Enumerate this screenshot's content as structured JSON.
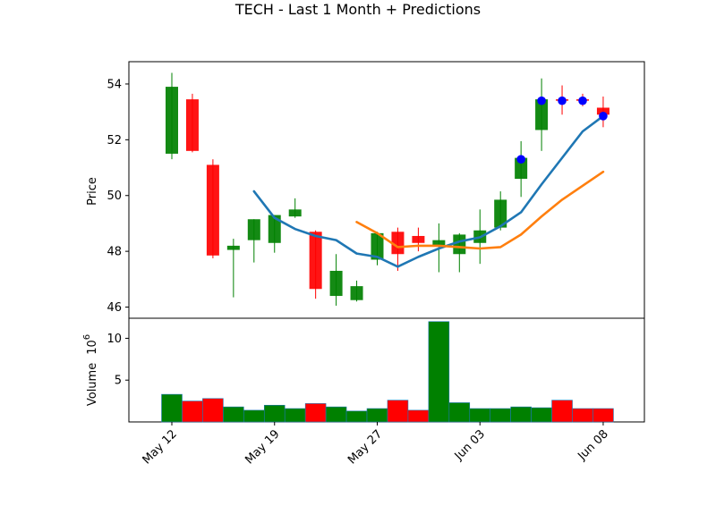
{
  "chart_data": {
    "type": "candlestick",
    "title": "TECH - Last 1 Month + Predictions",
    "colors": {
      "up": "#008000",
      "down": "#ff0000",
      "ma_fast": "#1f77b4",
      "ma_slow": "#ff7f0e",
      "prediction_marker": "#0000ff"
    },
    "price_panel": {
      "ylabel": "Price",
      "ylim": [
        45.6,
        54.8
      ],
      "yticks": [
        46,
        48,
        50,
        52,
        54
      ],
      "ytick_labels": [
        "46",
        "48",
        "50",
        "52",
        "54"
      ]
    },
    "volume_panel": {
      "ylabel": "Volume",
      "ylabel_exponent_base": "10",
      "ylabel_exponent": "6",
      "ylim": [
        0,
        12.4
      ],
      "yticks": [
        5,
        10
      ],
      "ytick_labels": [
        "5",
        "10"
      ]
    },
    "x_ticks": [
      {
        "label": "May 12",
        "index": 0
      },
      {
        "label": "May 19",
        "index": 5
      },
      {
        "label": "May 27",
        "index": 10
      },
      {
        "label": "Jun 03",
        "index": 15
      },
      {
        "label": "Jun 08",
        "index": 21
      }
    ],
    "candles": [
      {
        "open": 51.5,
        "high": 54.4,
        "low": 51.3,
        "close": 53.9,
        "volume": 3.3
      },
      {
        "open": 53.45,
        "high": 53.65,
        "low": 51.55,
        "close": 51.6,
        "volume": 2.5
      },
      {
        "open": 51.1,
        "high": 51.3,
        "low": 47.75,
        "close": 47.85,
        "volume": 2.8
      },
      {
        "open": 48.05,
        "high": 48.45,
        "low": 46.35,
        "close": 48.2,
        "volume": 1.8
      },
      {
        "open": 48.4,
        "high": 49.15,
        "low": 47.6,
        "close": 49.15,
        "volume": 1.4
      },
      {
        "open": 48.3,
        "high": 49.3,
        "low": 47.95,
        "close": 49.3,
        "volume": 2.0
      },
      {
        "open": 49.25,
        "high": 49.9,
        "low": 49.2,
        "close": 49.5,
        "volume": 1.6
      },
      {
        "open": 48.7,
        "high": 48.75,
        "low": 46.3,
        "close": 46.65,
        "volume": 2.2
      },
      {
        "open": 46.4,
        "high": 47.9,
        "low": 46.05,
        "close": 47.3,
        "volume": 1.8
      },
      {
        "open": 46.25,
        "high": 46.95,
        "low": 46.2,
        "close": 46.75,
        "volume": 1.3
      },
      {
        "open": 47.7,
        "high": 48.7,
        "low": 47.5,
        "close": 48.65,
        "volume": 1.6
      },
      {
        "open": 48.7,
        "high": 48.85,
        "low": 47.3,
        "close": 47.9,
        "volume": 2.6
      },
      {
        "open": 48.55,
        "high": 48.85,
        "low": 48.0,
        "close": 48.3,
        "volume": 1.4
      },
      {
        "open": 48.2,
        "high": 49.0,
        "low": 47.25,
        "close": 48.4,
        "volume": 12.0
      },
      {
        "open": 47.9,
        "high": 48.65,
        "low": 47.25,
        "close": 48.6,
        "volume": 2.3
      },
      {
        "open": 48.3,
        "high": 49.5,
        "low": 47.55,
        "close": 48.75,
        "volume": 1.6
      },
      {
        "open": 48.85,
        "high": 50.15,
        "low": 48.75,
        "close": 49.85,
        "volume": 1.6
      },
      {
        "open": 50.6,
        "high": 51.95,
        "low": 49.95,
        "close": 51.35,
        "volume": 1.8
      },
      {
        "open": 52.35,
        "high": 54.2,
        "low": 51.6,
        "close": 53.45,
        "volume": 1.7
      },
      {
        "open": 53.45,
        "high": 53.95,
        "low": 52.9,
        "close": 53.4,
        "volume": 2.6
      },
      {
        "open": 53.45,
        "high": 53.65,
        "low": 53.2,
        "close": 53.4,
        "volume": 1.6
      },
      {
        "open": 53.15,
        "high": 53.55,
        "low": 52.45,
        "close": 52.9,
        "volume": 1.6
      }
    ],
    "ma_fast": [
      {
        "index": 4,
        "value": 50.15
      },
      {
        "index": 5,
        "value": 49.2
      },
      {
        "index": 6,
        "value": 48.8
      },
      {
        "index": 7,
        "value": 48.55
      },
      {
        "index": 8,
        "value": 48.4
      },
      {
        "index": 9,
        "value": 47.92
      },
      {
        "index": 10,
        "value": 47.8
      },
      {
        "index": 11,
        "value": 47.45
      },
      {
        "index": 12,
        "value": 47.8
      },
      {
        "index": 13,
        "value": 48.1
      },
      {
        "index": 14,
        "value": 48.35
      },
      {
        "index": 15,
        "value": 48.5
      },
      {
        "index": 16,
        "value": 48.9
      },
      {
        "index": 17,
        "value": 49.4
      },
      {
        "index": 18,
        "value": 50.4
      },
      {
        "index": 19,
        "value": 51.35
      },
      {
        "index": 20,
        "value": 52.3
      },
      {
        "index": 21,
        "value": 52.85
      }
    ],
    "ma_slow": [
      {
        "index": 9,
        "value": 49.05
      },
      {
        "index": 10,
        "value": 48.65
      },
      {
        "index": 11,
        "value": 48.15
      },
      {
        "index": 12,
        "value": 48.2
      },
      {
        "index": 13,
        "value": 48.2
      },
      {
        "index": 14,
        "value": 48.15
      },
      {
        "index": 15,
        "value": 48.1
      },
      {
        "index": 16,
        "value": 48.15
      },
      {
        "index": 17,
        "value": 48.6
      },
      {
        "index": 18,
        "value": 49.25
      },
      {
        "index": 19,
        "value": 49.85
      },
      {
        "index": 20,
        "value": 50.35
      },
      {
        "index": 21,
        "value": 50.85
      }
    ],
    "predictions": [
      {
        "index": 17,
        "value": 51.3
      },
      {
        "index": 18,
        "value": 53.4
      },
      {
        "index": 19,
        "value": 53.4
      },
      {
        "index": 20,
        "value": 53.4
      },
      {
        "index": 21,
        "value": 52.85
      }
    ]
  }
}
